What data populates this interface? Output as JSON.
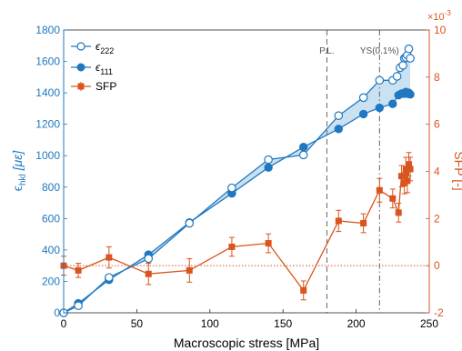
{
  "chart_data": {
    "type": "line",
    "xlabel": "Macroscopic stress [MPa]",
    "ylabel_left": "ε_hkl [με]",
    "ylabel_left_main": "ϵ",
    "ylabel_left_sub": "hkl",
    "ylabel_left_tail": " [με]",
    "ylabel_right": "SFP [-]",
    "right_axis_multiplier": "×10⁻³",
    "right_axis_multiplier_base": "×10",
    "right_axis_multiplier_exp": "-3",
    "xlim": [
      0,
      250
    ],
    "ylim_left": [
      0,
      1800
    ],
    "ylim_right": [
      -2,
      10
    ],
    "x_ticks": [
      0,
      50,
      100,
      150,
      200,
      250
    ],
    "y_left_ticks": [
      0,
      200,
      400,
      600,
      800,
      1000,
      1200,
      1400,
      1600,
      1800
    ],
    "y_right_ticks": [
      -2,
      0,
      2,
      4,
      6,
      8,
      10
    ],
    "legend_position": "top-left",
    "legend": [
      {
        "label_main": "ϵ",
        "label_sub": "222",
        "series": "e222"
      },
      {
        "label_main": "ϵ",
        "label_sub": "111",
        "series": "e111"
      },
      {
        "label_main": "SFP",
        "label_sub": "",
        "series": "sfp"
      }
    ],
    "annotations": [
      {
        "text": "P.L.",
        "x": 180,
        "style": "dashed"
      },
      {
        "text": "YS(0.1%)",
        "x": 216,
        "style": "dashdot"
      }
    ],
    "series": [
      {
        "name": "ϵ222",
        "axis": "left",
        "marker": "open-circle",
        "x": [
          0,
          10,
          31,
          58,
          86,
          115,
          140,
          164,
          188,
          205,
          216,
          225,
          228,
          230,
          232,
          233,
          234,
          235,
          236,
          237
        ],
        "values": [
          0,
          45,
          225,
          345,
          570,
          795,
          975,
          1005,
          1255,
          1370,
          1480,
          1480,
          1505,
          1560,
          1575,
          1620,
          1625,
          1640,
          1680,
          1620
        ]
      },
      {
        "name": "ϵ111",
        "axis": "left",
        "marker": "filled-circle",
        "x": [
          0,
          10,
          31,
          58,
          86,
          115,
          140,
          164,
          188,
          205,
          216,
          225,
          229,
          231,
          233,
          234,
          235,
          236,
          237
        ],
        "values": [
          0,
          60,
          210,
          370,
          575,
          760,
          925,
          1055,
          1170,
          1265,
          1305,
          1330,
          1385,
          1395,
          1395,
          1405,
          1395,
          1400,
          1390
        ]
      },
      {
        "name": "SFP",
        "axis": "right",
        "marker": "filled-square",
        "x": [
          0,
          10,
          31,
          58,
          86,
          115,
          140,
          164,
          188,
          205,
          216,
          225,
          229,
          231,
          233,
          234,
          235,
          236,
          237
        ],
        "values": [
          0,
          -0.2,
          0.35,
          -0.35,
          -0.2,
          0.8,
          0.95,
          -1.05,
          1.9,
          1.8,
          3.2,
          2.85,
          2.25,
          3.8,
          3.5,
          4.1,
          3.6,
          4.3,
          4.1
        ],
        "errors": [
          0.4,
          0.3,
          0.45,
          0.45,
          0.5,
          0.4,
          0.4,
          0.4,
          0.45,
          0.4,
          0.5,
          0.4,
          0.4,
          0.45,
          0.45,
          0.5,
          0.5,
          0.5,
          0.5
        ]
      }
    ],
    "colors": {
      "epsilon": "#1f78c1",
      "sfp": "#d9541e",
      "band": "#bcd9ee",
      "axis_text": "#000000"
    }
  }
}
